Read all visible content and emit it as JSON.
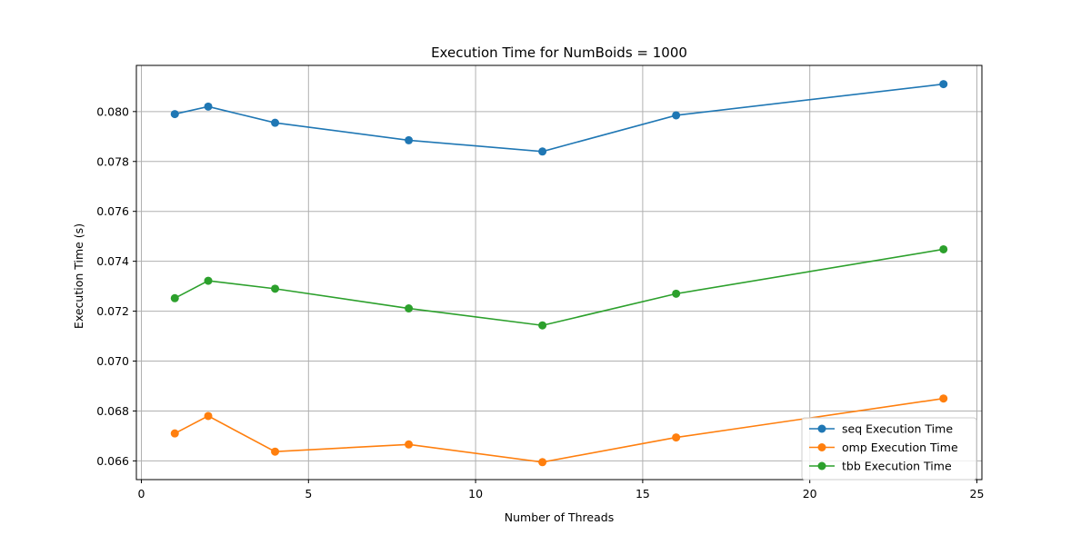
{
  "chart_data": {
    "type": "line",
    "title": "Execution Time for NumBoids = 1000",
    "xlabel": "Number of Threads",
    "ylabel": "Execution Time (s)",
    "xlim": [
      -0.15,
      25.15
    ],
    "ylim": [
      0.06525,
      0.08185
    ],
    "x_ticks": [
      0,
      5,
      10,
      15,
      20,
      25
    ],
    "x_tick_labels": [
      "0",
      "5",
      "10",
      "15",
      "20",
      "25"
    ],
    "y_ticks": [
      0.066,
      0.068,
      0.07,
      0.072,
      0.074,
      0.076,
      0.078,
      0.08
    ],
    "y_tick_labels": [
      "0.066",
      "0.068",
      "0.070",
      "0.072",
      "0.074",
      "0.076",
      "0.078",
      "0.080"
    ],
    "grid": true,
    "legend_position": "lower-right",
    "x": [
      1,
      2,
      4,
      8,
      12,
      16,
      24
    ],
    "series": [
      {
        "name": "seq Execution Time",
        "color": "#1f77b4",
        "marker": "circle",
        "values": [
          0.0799,
          0.0802,
          0.07955,
          0.07885,
          0.0784,
          0.07985,
          0.0811
        ]
      },
      {
        "name": "omp Execution Time",
        "color": "#ff7f0e",
        "marker": "circle",
        "values": [
          0.0671,
          0.0678,
          0.06637,
          0.06666,
          0.06595,
          0.06694,
          0.0685
        ]
      },
      {
        "name": "tbb Execution Time",
        "color": "#2ca02c",
        "marker": "circle",
        "values": [
          0.07252,
          0.07322,
          0.0729,
          0.07211,
          0.07143,
          0.0727,
          0.07448
        ]
      }
    ]
  }
}
